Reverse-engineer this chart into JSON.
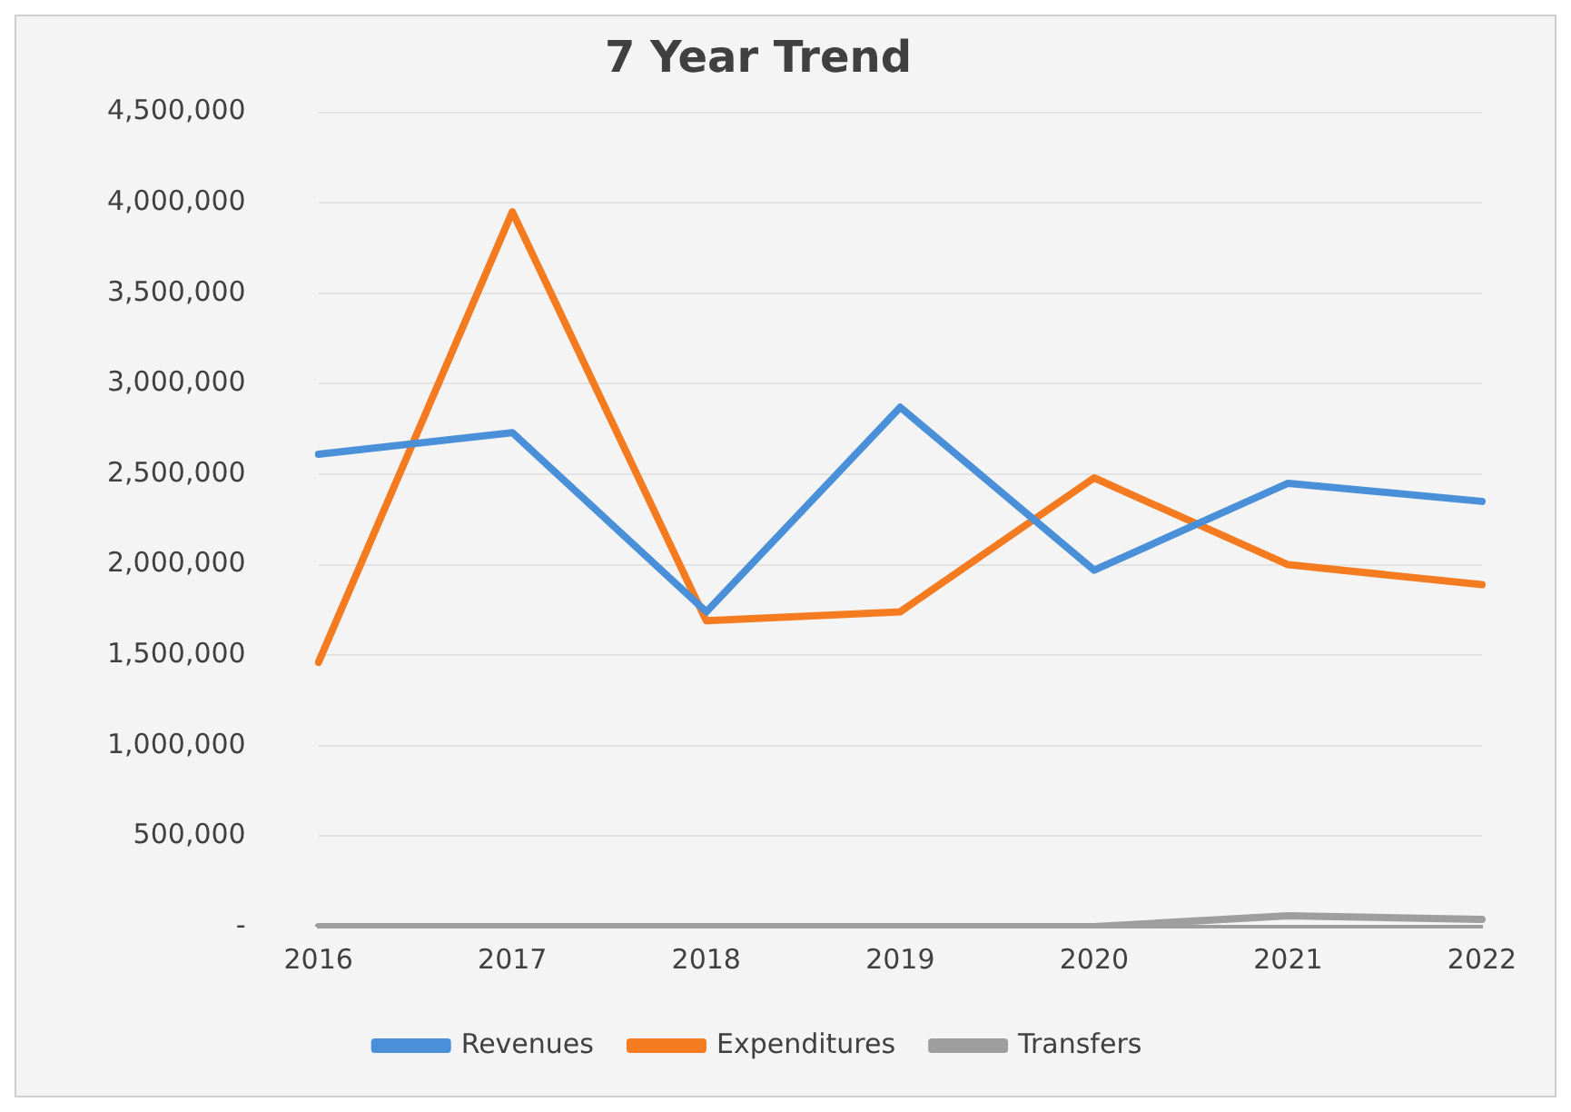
{
  "chart_data": {
    "type": "line",
    "title": "7 Year Trend",
    "categories": [
      "2016",
      "2017",
      "2018",
      "2019",
      "2020",
      "2021",
      "2022"
    ],
    "series": [
      {
        "name": "Revenues",
        "color": "#4a90d9",
        "values": [
          2610000,
          2730000,
          1740000,
          2870000,
          1970000,
          2450000,
          2350000
        ]
      },
      {
        "name": "Expenditures",
        "color": "#f47b20",
        "values": [
          1460000,
          3950000,
          1690000,
          1740000,
          2480000,
          2000000,
          1890000
        ]
      },
      {
        "name": "Transfers",
        "color": "#9e9e9e",
        "values": [
          0,
          0,
          0,
          0,
          0,
          60000,
          40000
        ]
      }
    ],
    "ylim": [
      0,
      4500000
    ],
    "yticks": [
      {
        "value": 0,
        "label": "-"
      },
      {
        "value": 500000,
        "label": "500,000"
      },
      {
        "value": 1000000,
        "label": "1,000,000"
      },
      {
        "value": 1500000,
        "label": "1,500,000"
      },
      {
        "value": 2000000,
        "label": "2,000,000"
      },
      {
        "value": 2500000,
        "label": "2,500,000"
      },
      {
        "value": 3000000,
        "label": "3,000,000"
      },
      {
        "value": 3500000,
        "label": "3,500,000"
      },
      {
        "value": 4000000,
        "label": "4,000,000"
      },
      {
        "value": 4500000,
        "label": "4,500,000"
      }
    ],
    "grid": "y",
    "legend": "bottom",
    "marker": "none",
    "line_style": "solid"
  }
}
